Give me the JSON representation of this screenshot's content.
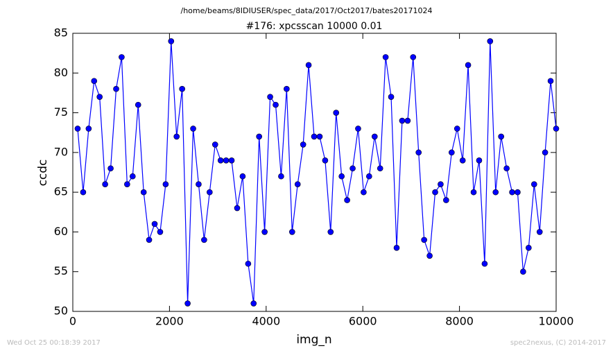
{
  "header": "/home/beams/8IDIUSER/spec_data/2017/Oct2017/bates20171024",
  "chart_data": {
    "type": "line",
    "title": "#176: xpcsscan 10000 0.01",
    "x_label": "img_n",
    "y_label": "ccdc",
    "x": [
      100,
      214,
      328,
      441,
      555,
      669,
      783,
      897,
      1010,
      1124,
      1238,
      1352,
      1466,
      1579,
      1693,
      1807,
      1921,
      2034,
      2148,
      2262,
      2376,
      2490,
      2603,
      2717,
      2831,
      2945,
      3059,
      3172,
      3286,
      3400,
      3514,
      3628,
      3741,
      3855,
      3969,
      4083,
      4197,
      4310,
      4424,
      4538,
      4652,
      4766,
      4879,
      4993,
      5107,
      5221,
      5334,
      5448,
      5562,
      5676,
      5790,
      5903,
      6017,
      6131,
      6245,
      6359,
      6472,
      6586,
      6700,
      6814,
      6928,
      7041,
      7155,
      7269,
      7383,
      7497,
      7610,
      7724,
      7838,
      7952,
      8066,
      8179,
      8293,
      8407,
      8521,
      8634,
      8748,
      8862,
      8976,
      9090,
      9203,
      9317,
      9431,
      9545,
      9659,
      9772,
      9886,
      10000
    ],
    "series": [
      {
        "color": "#0000ff",
        "values": [
          73,
          65,
          73,
          79,
          77,
          66,
          68,
          78,
          82,
          66,
          67,
          76,
          65,
          59,
          61,
          60,
          66,
          84,
          72,
          78,
          51,
          73,
          66,
          59,
          65,
          71,
          69,
          69,
          69,
          63,
          67,
          56,
          51,
          72,
          60,
          77,
          76,
          67,
          78,
          60,
          66,
          71,
          81,
          72,
          72,
          69,
          60,
          75,
          67,
          64,
          68,
          73,
          65,
          67,
          72,
          68,
          82,
          77,
          58,
          74,
          74,
          82,
          70,
          59,
          57,
          65,
          66,
          64,
          70,
          73,
          69,
          81,
          65,
          69,
          56,
          84,
          65,
          72,
          68,
          65,
          65,
          55,
          58,
          66,
          60,
          70,
          79,
          73
        ]
      }
    ],
    "xlim": [
      0,
      10000
    ],
    "ylim": [
      50,
      85
    ],
    "xticks": [
      0,
      2000,
      4000,
      6000,
      8000,
      10000
    ],
    "yticks": [
      50,
      55,
      60,
      65,
      70,
      75,
      80,
      85
    ]
  },
  "footer": {
    "left": "Wed Oct 25 00:18:39 2017",
    "right": "spec2nexus, (C) 2014-2017"
  }
}
